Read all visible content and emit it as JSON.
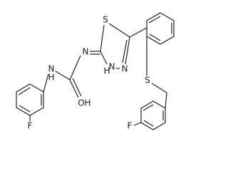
{
  "atoms": [
    "F",
    "N",
    "H",
    "O",
    "H",
    "N",
    "S",
    "H",
    "N",
    "N",
    "S",
    "F"
  ]
}
